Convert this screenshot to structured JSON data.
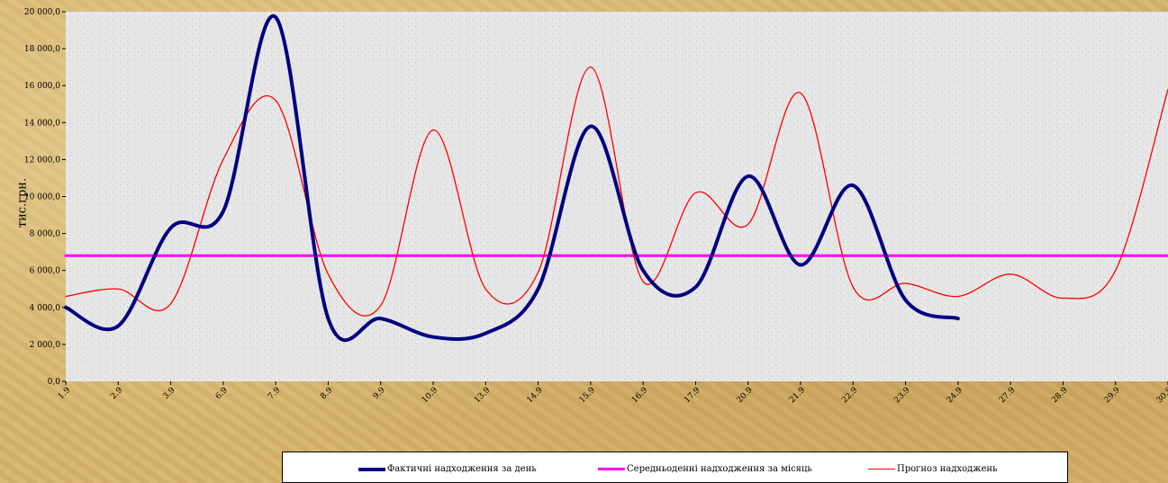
{
  "chart_data": {
    "type": "line",
    "categories": [
      "1.9",
      "2.9",
      "3.9",
      "6.9",
      "7.9",
      "8.9",
      "9.9",
      "10.9",
      "13.9",
      "14.9",
      "15.9",
      "16.9",
      "17.9",
      "20.9",
      "21.9",
      "22.9",
      "23.9",
      "24.9",
      "27.9",
      "28.9",
      "29.9",
      "30.9"
    ],
    "ylabel": "тис.грн.",
    "ylim": [
      0,
      20000
    ],
    "yticks": [
      "0,0",
      "2 000,0",
      "4 000,0",
      "6 000,0",
      "8 000,0",
      "10 000,0",
      "12 000,0",
      "14 000,0",
      "16 000,0",
      "18 000,0",
      "20 000,0"
    ],
    "series": [
      {
        "name": "Фактичні надходження за день",
        "color": "#000080",
        "width": 4,
        "values": [
          4000,
          3000,
          8300,
          9200,
          19700,
          3400,
          3400,
          2400,
          2600,
          5000,
          13800,
          6000,
          5100,
          11100,
          6300,
          10600,
          4400,
          3400,
          null,
          null,
          null,
          null
        ]
      },
      {
        "name": "Середньоденні надходження за місяць",
        "color": "#ff00ff",
        "width": 3,
        "values": [
          6800,
          6800,
          6800,
          6800,
          6800,
          6800,
          6800,
          6800,
          6800,
          6800,
          6800,
          6800,
          6800,
          6800,
          6800,
          6800,
          6800,
          6800,
          6800,
          6800,
          6800,
          6800
        ]
      },
      {
        "name": "Прогноз надходжень",
        "color": "#ff0000",
        "width": 1.3,
        "values": [
          4600,
          5000,
          4200,
          12000,
          15200,
          5800,
          4100,
          13600,
          5000,
          5900,
          17000,
          5400,
          10200,
          8500,
          15600,
          5100,
          5300,
          4600,
          5800,
          4500,
          6000,
          15800
        ]
      }
    ]
  }
}
